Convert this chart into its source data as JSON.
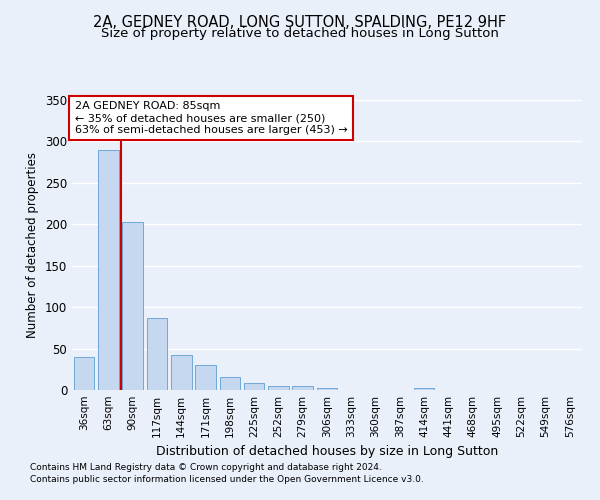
{
  "title_line1": "2A, GEDNEY ROAD, LONG SUTTON, SPALDING, PE12 9HF",
  "title_line2": "Size of property relative to detached houses in Long Sutton",
  "xlabel": "Distribution of detached houses by size in Long Sutton",
  "ylabel": "Number of detached properties",
  "footer_line1": "Contains HM Land Registry data © Crown copyright and database right 2024.",
  "footer_line2": "Contains public sector information licensed under the Open Government Licence v3.0.",
  "categories": [
    "36sqm",
    "63sqm",
    "90sqm",
    "117sqm",
    "144sqm",
    "171sqm",
    "198sqm",
    "225sqm",
    "252sqm",
    "279sqm",
    "306sqm",
    "333sqm",
    "360sqm",
    "387sqm",
    "414sqm",
    "441sqm",
    "468sqm",
    "495sqm",
    "522sqm",
    "549sqm",
    "576sqm"
  ],
  "values": [
    40,
    290,
    203,
    87,
    42,
    30,
    16,
    9,
    5,
    5,
    3,
    0,
    0,
    0,
    3,
    0,
    0,
    0,
    0,
    0,
    0
  ],
  "bar_color": "#c5d8f0",
  "bar_edge_color": "#6fa8d6",
  "property_label": "2A GEDNEY ROAD: 85sqm",
  "annotation_line1": "← 35% of detached houses are smaller (250)",
  "annotation_line2": "63% of semi-detached houses are larger (453) →",
  "vline_color": "#cc0000",
  "vline_x_index": 2,
  "annotation_box_color": "#ffffff",
  "annotation_box_edge": "#cc0000",
  "ylim": [
    0,
    350
  ],
  "yticks": [
    0,
    50,
    100,
    150,
    200,
    250,
    300,
    350
  ],
  "bg_color": "#eaf0f9",
  "grid_color": "#ffffff",
  "title_fontsize": 10.5,
  "subtitle_fontsize": 9.5
}
